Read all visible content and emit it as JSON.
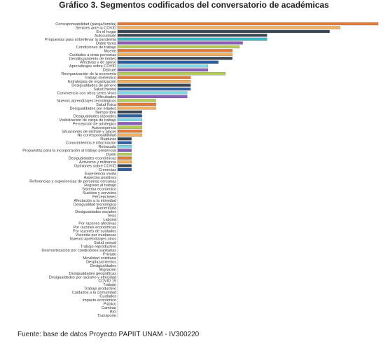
{
  "chart_data": {
    "type": "bar",
    "orientation": "horizontal",
    "title": "Gráfico 3. Segmentos codificados del conversatorio de académicas",
    "xlabel": "",
    "ylabel": "",
    "xlim": [
      0,
      76
    ],
    "grid": false,
    "legend": "none",
    "categories": [
      "Corresponsabilidad (pareja/familia)",
      "Sentires ante la COVID",
      "En el hogar",
      "Autocuidado",
      "Propuestas para sobrellevar la pandemia",
      "Doble tarea",
      "Condiciones de trabajo",
      "Muerte",
      "Cuidados a otras personas",
      "Desdibujamiento de límites",
      "Afectivas y de apoyo",
      "Aprendizajes sobre COVID",
      "Disfrute",
      "Reorganización de la economía",
      "Trabajo doméstico",
      "Estrategias de organización",
      "Desigualdades de género",
      "Salud mental",
      "Convivencia con otros seres vivos",
      "Dificultades",
      "Nuevos aprendizajes tecnológicos",
      "Salud física",
      "Desigualdades por edades",
      "Tiempo libre",
      "Desigualdades laborales",
      "Visibilización de carga de trabajo",
      "Percepción de privilegios",
      "Autoexigencia",
      "Situaciones de disfrute y placer",
      "No corresponsabilidad",
      "Rupturas",
      "Conocimientos e información",
      "Rebasada",
      "Propuestas para la incorporación al trabajo presencial",
      "Duelo",
      "Desigualdades económicas",
      "Activismo y militancia",
      "Opiniones sobre COVID",
      "Creencias",
      "Experiencia vivida",
      "Aspectos positivos",
      "Referencias y experiencias de personas cercanas",
      "Regreso al trabajo",
      "Sistema económico",
      "Sueldos y servicios",
      "Percepciones",
      "Afectación a la intimidad",
      "Desigualdad tecnológica",
      "Aumentada",
      "Desigualdades sociales",
      "Tesis",
      "Laboral",
      "Por razones afectivas",
      "Por razones económicas",
      "Por razones de cuidados",
      "Vivienda por mudanzas",
      "Nuevos aprendizajes otros",
      "Salud sexual",
      "Trabajo reproductivo",
      "Desmovilización por condiciones sanitarias",
      "Privado",
      "Movilidad cotidiana",
      "Desplazamientos",
      "Desigualdades",
      "Migración",
      "Desigualdades geográficas",
      "Desigualdades por racismo y etnicidad",
      "COVID 19",
      "Trabajo",
      "Trabajo productivo",
      "Cuidados a la comunidad",
      "Cuidados",
      "Impacto económico",
      "Público",
      "Caminar",
      "Bici",
      "Transporte"
    ],
    "values": [
      75,
      64,
      61,
      43,
      43,
      36,
      35,
      33,
      33,
      33,
      29,
      26,
      26,
      31,
      21,
      21,
      21,
      21,
      20,
      20,
      11,
      11,
      11,
      7,
      7,
      7,
      7,
      7,
      7,
      7,
      4,
      4,
      4,
      4,
      4,
      4,
      4,
      4,
      4,
      0,
      0,
      0,
      0,
      0,
      0,
      0,
      0,
      0,
      0,
      0,
      0,
      0,
      0,
      0,
      0,
      0,
      0,
      0,
      0,
      0,
      0,
      0,
      0,
      0,
      0,
      0,
      0,
      0,
      0,
      0,
      0,
      0,
      0,
      0,
      0,
      0,
      0
    ],
    "colors": [
      "#e07b39",
      "#f0b060",
      "#3a4652",
      "#3a4652",
      "#3fb8c6",
      "#8a5fb8",
      "#b5cc5a",
      "#e07b39",
      "#f0b060",
      "#3a4652",
      "#2d5fa0",
      "#7fd8e8",
      "#8a5fb8",
      "#b5cc5a",
      "#e07b39",
      "#f0b060",
      "#3a4652",
      "#2d5fa0",
      "#7fd8e8",
      "#8a5fb8",
      "#b5cc5a",
      "#e07b39",
      "#f0b060",
      "#3a4652",
      "#2d5fa0",
      "#7fd8e8",
      "#8a5fb8",
      "#b5cc5a",
      "#e07b39",
      "#f0b060",
      "#3a4652",
      "#2d5fa0",
      "#7fd8e8",
      "#8a5fb8",
      "#b5cc5a",
      "#e07b39",
      "#f0b060",
      "#3a4652",
      "#2d5fa0"
    ]
  },
  "source_note": "Fuente: base de datos Proyecto PAPIIT UNAM - IV300220"
}
